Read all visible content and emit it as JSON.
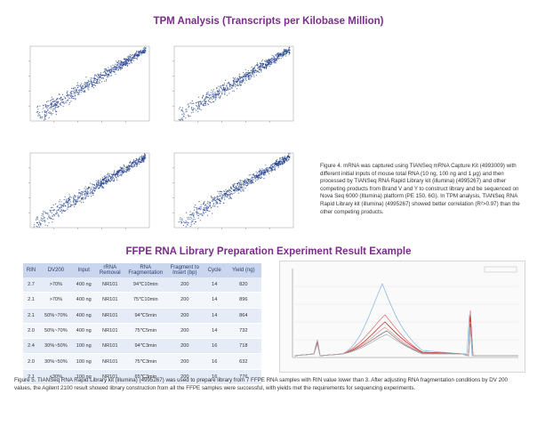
{
  "tpm_title": "TPM Analysis (Transcripts per Kilobase Million)",
  "ffpe_title": "FFPE RNA Library Preparation Experiment Result Example",
  "figure4_caption": "Figure 4. mRNA was captured using TIANSeq mRNA Capture Kit (4993009) with different initial inputs of mouse total RNA (10 ng, 100 ng and 1 μg) and then processed by TIANSeq RNA Rapid Library kit (illumina) (4995267) and other competing products from Brand V and Y to construct library and be sequenced on Nova Seq 6000 (Illumina) platform (PE 150, 6G). In TPM analysis, TIANSeq RNA Rapid Library kit (illumina) (4995267) showed better correlation (R²>0.97) than the other competing products.",
  "figure5_caption": "Figure 5. TIANSeq RNA Rapid Library kit (illumina) (4995267) was used to prepare library from 7 FFPE RNA samples with RIN value lower than 3. After adjusting RNA fragmentation conditions by DV 200 values, the Agilent 2100 result showed library construction from all the FFPE samples were successful, with yields met the requirements for sequencing experiments.",
  "table": {
    "headers": [
      "RIN",
      "DV200",
      "Input",
      "rRNA Removal",
      "RNA Fragmentation",
      "Fragment to Insert (bp)",
      "Cycle",
      "Yield (ng)"
    ],
    "rows": [
      [
        "2.7",
        ">70%",
        "400 ng",
        "NR101",
        "94℃10min",
        "200",
        "14",
        "820"
      ],
      [
        "2.1",
        ">70%",
        "400 ng",
        "NR101",
        "75℃10min",
        "200",
        "14",
        "896"
      ],
      [
        "2.1",
        "50%~70%",
        "400 ng",
        "NR101",
        "94℃5min",
        "200",
        "14",
        "864"
      ],
      [
        "2.0",
        "50%~70%",
        "400 ng",
        "NR101",
        "75℃5min",
        "200",
        "14",
        "732"
      ],
      [
        "2.4",
        "30%~50%",
        "100 ng",
        "NR101",
        "94℃3min",
        "200",
        "16",
        "718"
      ],
      [
        "2.0",
        "30%~50%",
        "100 ng",
        "NR101",
        "75℃3min",
        "200",
        "16",
        "632"
      ],
      [
        "2.1",
        "<30%",
        "100 ng",
        "NR101",
        "65℃3min",
        "200",
        "16",
        "776"
      ]
    ]
  },
  "colors": {
    "title_purple": "#7a2d8a",
    "scatter_blue": "#1f3d8a",
    "table_header": "#c9d6ee"
  }
}
